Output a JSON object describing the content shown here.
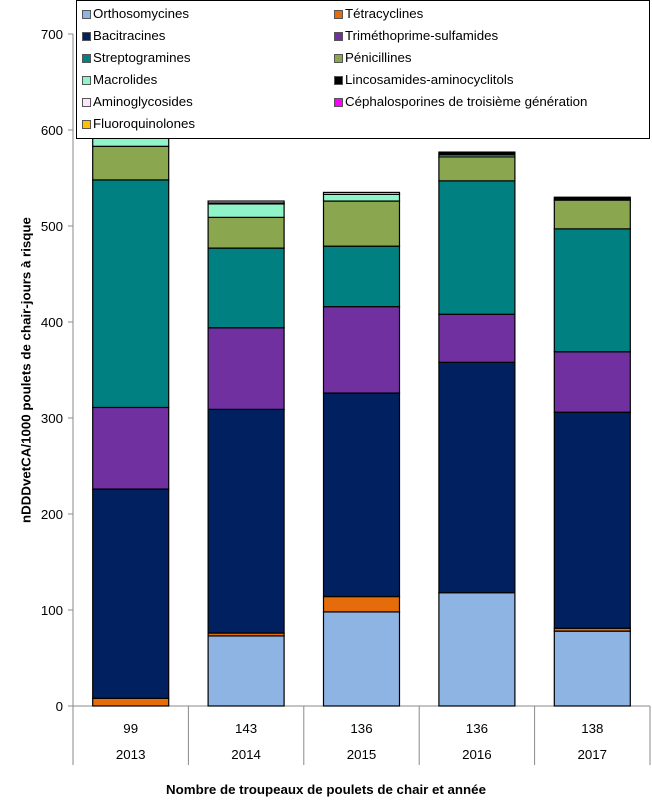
{
  "chart_data": {
    "type": "bar",
    "stacked": true,
    "title": "",
    "ylabel": "nDDDvetCA/1000 poulets de chair-jours à risque",
    "xlabel": "Nombre de troupeaux de poulets de chair et année",
    "ylim": [
      0,
      700
    ],
    "yticks": [
      0,
      100,
      200,
      300,
      400,
      500,
      600,
      700
    ],
    "grid": false,
    "legend_position": "top",
    "categories": [
      "2013",
      "2014",
      "2015",
      "2016",
      "2017"
    ],
    "flock_counts": [
      "99",
      "143",
      "136",
      "136",
      "138"
    ],
    "series": [
      {
        "name": "Orthosomycines",
        "color": "#8EB4E3",
        "values": [
          0,
          73,
          98,
          118,
          78
        ]
      },
      {
        "name": "Tétracyclines",
        "color": "#E46C0A",
        "values": [
          8,
          3,
          16,
          0,
          3
        ]
      },
      {
        "name": "Bacitracines",
        "color": "#002060",
        "values": [
          218,
          233,
          212,
          240,
          225
        ]
      },
      {
        "name": "Triméthoprime-sulfamides",
        "color": "#7030A0",
        "values": [
          85,
          85,
          90,
          50,
          63
        ]
      },
      {
        "name": "Streptogramines",
        "color": "#008080",
        "values": [
          237,
          83,
          63,
          139,
          128
        ]
      },
      {
        "name": "Pénicillines",
        "color": "#8AA64E",
        "values": [
          35,
          32,
          47,
          25,
          30
        ]
      },
      {
        "name": "Macrolides",
        "color": "#8FF5C9",
        "values": [
          11,
          14,
          7,
          2,
          0
        ]
      },
      {
        "name": "Lincosamides-aminocyclitols",
        "color": "#000000",
        "values": [
          3,
          1,
          0,
          3,
          3
        ]
      },
      {
        "name": "Aminoglycosides",
        "color": "#FCE4FC",
        "values": [
          0,
          2,
          2,
          0,
          0
        ]
      },
      {
        "name": "Céphalosporines de troisième génération",
        "color": "#FF00FF",
        "values": [
          0,
          0,
          0,
          0,
          0
        ]
      },
      {
        "name": "Fluoroquinolones",
        "color": "#FFC000",
        "values": [
          0,
          0,
          0,
          0,
          0
        ]
      }
    ],
    "legend_order": [
      "Orthosomycines",
      "Tétracyclines",
      "Bacitracines",
      "Triméthoprime-sulfamides",
      "Streptogramines",
      "Pénicillines",
      "Macrolides",
      "Lincosamides-aminocyclitols",
      "Aminoglycosides",
      "Céphalosporines de troisième génération",
      "Fluoroquinolones"
    ]
  }
}
